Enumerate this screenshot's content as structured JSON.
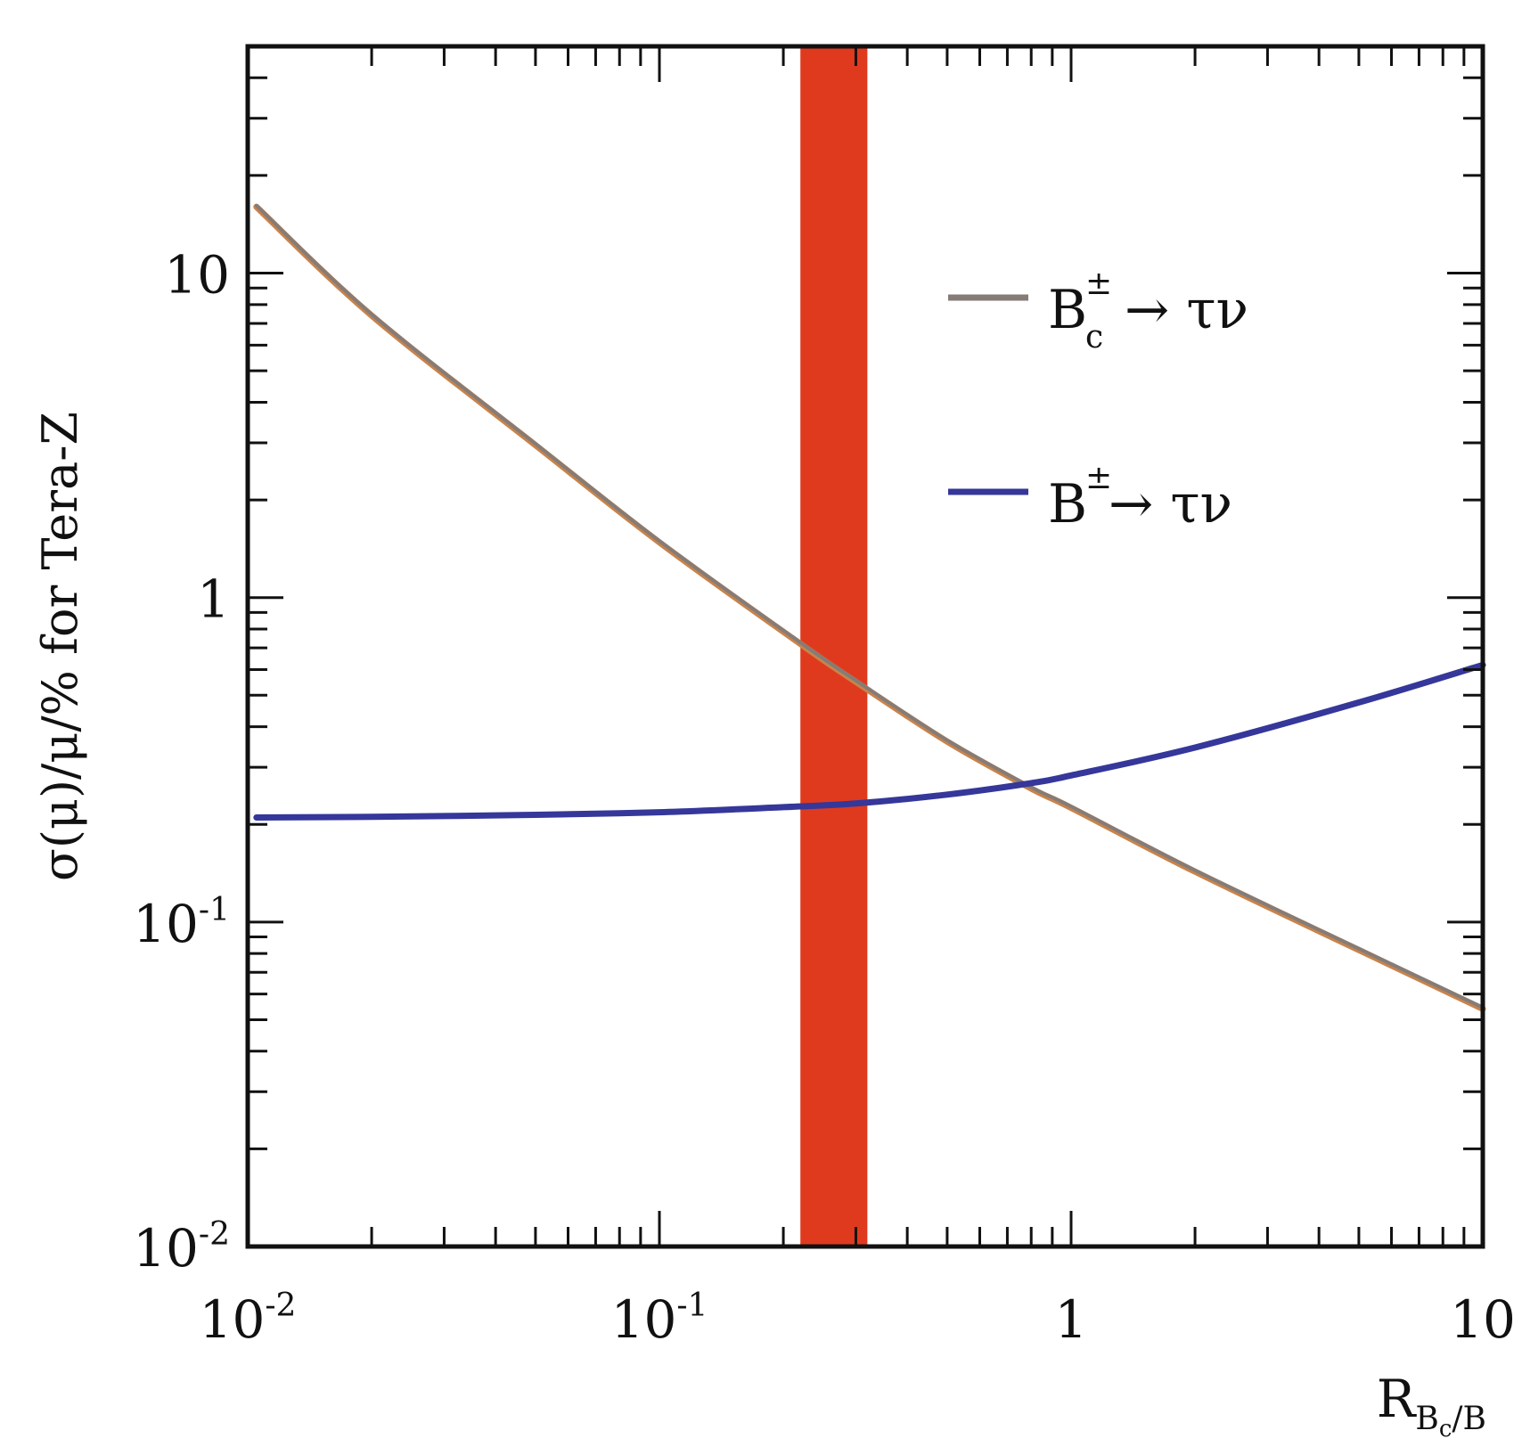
{
  "chart_data": {
    "type": "line",
    "xlabel": "R",
    "xlabel_sub": "B",
    "xlabel_subsub": "c",
    "xlabel_sub_tail": "/B",
    "ylabel": "σ(μ)/μ/% for Tera-Z",
    "x_scale": "log",
    "y_scale": "log",
    "xlim": [
      0.01,
      10
    ],
    "ylim": [
      0.01,
      50
    ],
    "grid": false,
    "legend_position": "right",
    "x_ticks": [
      {
        "value": 0.01,
        "base": "10",
        "exp": "-2"
      },
      {
        "value": 0.1,
        "base": "10",
        "exp": "-1"
      },
      {
        "value": 1,
        "base": "1",
        "exp": ""
      },
      {
        "value": 10,
        "base": "10",
        "exp": ""
      }
    ],
    "y_ticks": [
      {
        "value": 0.01,
        "base": "10",
        "exp": "-2"
      },
      {
        "value": 0.1,
        "base": "10",
        "exp": "-1"
      },
      {
        "value": 1,
        "base": "1",
        "exp": ""
      },
      {
        "value": 10,
        "base": "10",
        "exp": ""
      }
    ],
    "band": {
      "x_from": 0.22,
      "x_to": 0.32,
      "color": "#e03a1e"
    },
    "series": [
      {
        "name": "Bc± → τν",
        "legend_base": "B",
        "legend_sup": "±",
        "legend_sub": "c",
        "legend_tail": "→ τν",
        "color": "#857c78",
        "x": [
          0.0105,
          0.02,
          0.05,
          0.1,
          0.22,
          0.3,
          0.5,
          0.8,
          1.0,
          2.0,
          5.0,
          10.0
        ],
        "y": [
          16.0,
          7.4,
          2.95,
          1.48,
          0.72,
          0.55,
          0.36,
          0.258,
          0.225,
          0.143,
          0.082,
          0.054
        ]
      },
      {
        "name": "B± → τν",
        "legend_base": "B",
        "legend_sup": "±",
        "legend_sub": "",
        "legend_tail": "→ τν",
        "color": "#35379a",
        "x": [
          0.0105,
          0.02,
          0.05,
          0.1,
          0.2,
          0.3,
          0.5,
          0.8,
          1.0,
          2.0,
          5.0,
          10.0
        ],
        "y": [
          0.21,
          0.211,
          0.214,
          0.218,
          0.226,
          0.232,
          0.247,
          0.268,
          0.283,
          0.345,
          0.475,
          0.62
        ]
      }
    ]
  }
}
